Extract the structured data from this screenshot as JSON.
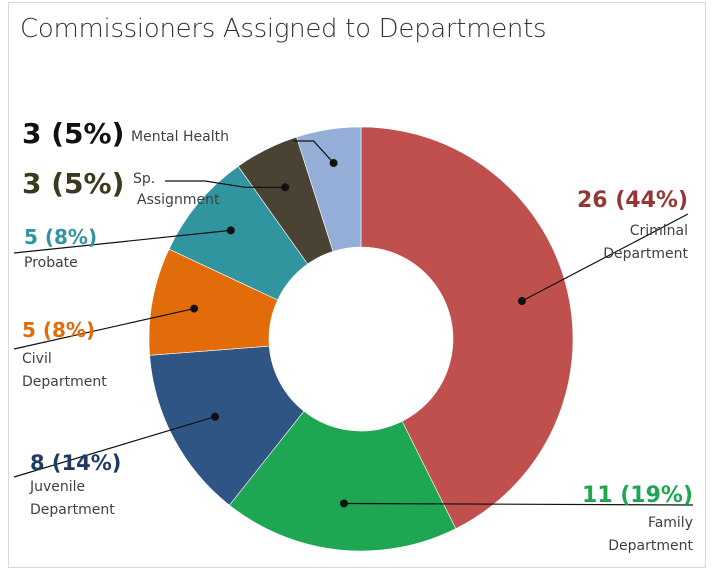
{
  "chart_data": {
    "type": "pie",
    "donut": true,
    "title": "Commissioners Assigned to Departments",
    "slices": [
      {
        "name": "Criminal Department",
        "label_lines": [
          "Criminal",
          "Department"
        ],
        "value": 26,
        "percent": "44%",
        "value_label": "26 (44%)",
        "color": "#c0504d"
      },
      {
        "name": "Family Department",
        "label_lines": [
          "Family",
          "Department"
        ],
        "value": 11,
        "percent": "19%",
        "value_label": "11 (19%)",
        "color": "#1fa653"
      },
      {
        "name": "Juvenile Department",
        "label_lines": [
          "Juvenile",
          "Department"
        ],
        "value": 8,
        "percent": "14%",
        "value_label": "8 (14%)",
        "color": "#2f5584"
      },
      {
        "name": "Civil Department",
        "label_lines": [
          "Civil",
          "Department"
        ],
        "value": 5,
        "percent": "8%",
        "value_label": "5 (8%)",
        "color": "#e36c0a"
      },
      {
        "name": "Probate",
        "label_lines": [
          "Probate"
        ],
        "value": 5,
        "percent": "8%",
        "value_label": "5 (8%)",
        "color": "#31959f"
      },
      {
        "name": "Sp. Assignment",
        "label_lines": [
          "Sp.",
          "Assignment"
        ],
        "value": 3,
        "percent": "5%",
        "value_label": "3 (5%)",
        "color": "#4a4232"
      },
      {
        "name": "Mental Health",
        "label_lines": [
          "Mental Health"
        ],
        "value": 3,
        "percent": "5%",
        "value_label": "3 (5%)",
        "color": "#95aed8"
      }
    ],
    "value_label_colors": [
      "#953735",
      "#1fa653",
      "#1f3b63",
      "#e36c0a",
      "#31959f",
      "#3b3a1e",
      "#111111"
    ],
    "legend": "none"
  }
}
